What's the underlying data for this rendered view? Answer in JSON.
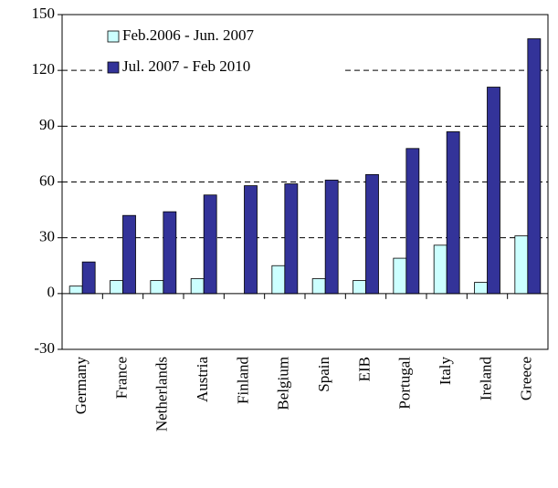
{
  "chart_data": {
    "type": "bar",
    "categories": [
      "Germany",
      "France",
      "Netherlands",
      "Austria",
      "Finland",
      "Belgium",
      "Spain",
      "EIB",
      "Portugal",
      "Italy",
      "Ireland",
      "Greece"
    ],
    "series": [
      {
        "name": "Feb.2006 - Jun. 2007",
        "color": "#ccffff",
        "values": [
          4,
          7,
          7,
          8,
          0,
          15,
          8,
          7,
          19,
          26,
          6,
          31
        ]
      },
      {
        "name": "Jul. 2007 - Feb 2010",
        "color": "#333399",
        "values": [
          17,
          42,
          44,
          53,
          58,
          59,
          61,
          64,
          78,
          87,
          111,
          137
        ]
      }
    ],
    "ylim": [
      -30,
      150
    ],
    "yticks": [
      -30,
      0,
      30,
      60,
      90,
      120,
      150
    ],
    "grid": true,
    "legend": "upper left"
  }
}
